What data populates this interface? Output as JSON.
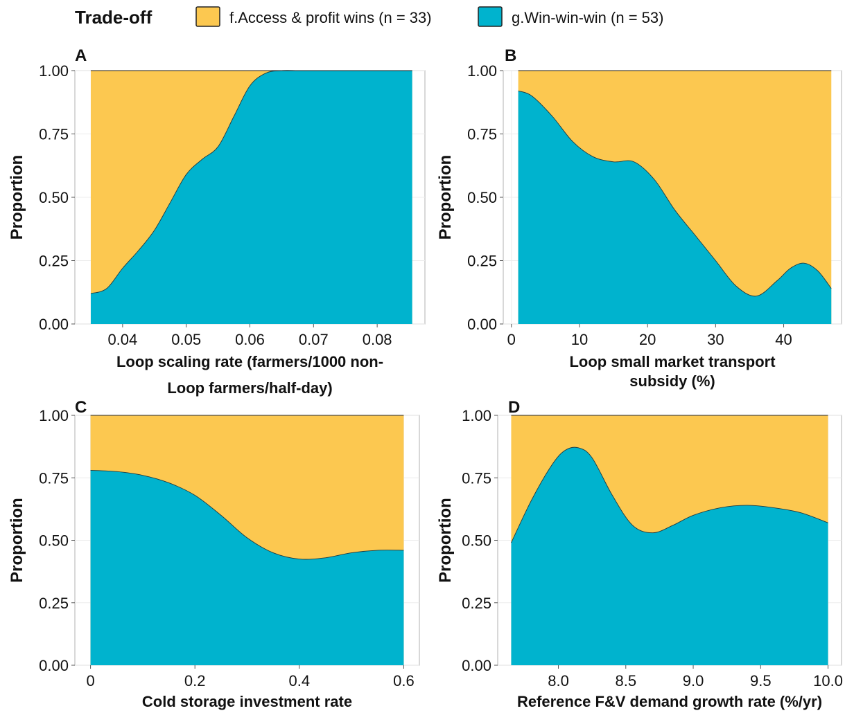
{
  "legend": {
    "title": "Trade-off",
    "items": [
      {
        "label": "f.Access & profit wins (n = 33)",
        "color": "#FCC850"
      },
      {
        "label": "g.Win-win-win (n = 53)",
        "color": "#00B3CE"
      }
    ]
  },
  "chart_data": [
    {
      "panel": "A",
      "type": "area",
      "stacked_proportion": true,
      "xlabel_lines": [
        "Loop scaling rate (farmers/1000 non-",
        "Loop farmers/half-day)"
      ],
      "ylabel": "Proportion",
      "xlim": [
        0.0325,
        0.0875
      ],
      "ylim": [
        0,
        1
      ],
      "x_ticks": [
        0.04,
        0.05,
        0.06,
        0.07,
        0.08
      ],
      "x_tick_labels": [
        "0.04",
        "0.05",
        "0.06",
        "0.07",
        "0.08"
      ],
      "y_ticks": [
        0,
        0.25,
        0.5,
        0.75,
        1
      ],
      "y_tick_labels": [
        "0.00",
        "0.25",
        "0.50",
        "0.75",
        "1.00"
      ],
      "series": [
        {
          "name": "f.Access & profit wins (n = 33)",
          "role": "top"
        },
        {
          "name": "g.Win-win-win (n = 53)",
          "role": "bottom",
          "x": [
            0.035,
            0.0375,
            0.04,
            0.0425,
            0.045,
            0.0475,
            0.05,
            0.0525,
            0.055,
            0.0575,
            0.06,
            0.0625,
            0.065,
            0.0675,
            0.07,
            0.0855
          ],
          "values": [
            0.12,
            0.14,
            0.22,
            0.29,
            0.37,
            0.48,
            0.59,
            0.65,
            0.7,
            0.82,
            0.94,
            0.99,
            1.0,
            1.0,
            1.0,
            1.0
          ]
        }
      ]
    },
    {
      "panel": "B",
      "type": "area",
      "stacked_proportion": true,
      "xlabel_lines": [
        "Loop small market transport",
        "subsidy (%)"
      ],
      "ylabel": "Proportion",
      "xlim": [
        -1.2,
        48.5
      ],
      "ylim": [
        0,
        1
      ],
      "x_ticks": [
        0,
        10,
        20,
        30,
        40
      ],
      "x_tick_labels": [
        "0",
        "10",
        "20",
        "30",
        "40"
      ],
      "y_ticks": [
        0,
        0.25,
        0.5,
        0.75,
        1
      ],
      "y_tick_labels": [
        "0.00",
        "0.25",
        "0.50",
        "0.75",
        "1.00"
      ],
      "series": [
        {
          "name": "f.Access & profit wins (n = 33)",
          "role": "top"
        },
        {
          "name": "g.Win-win-win (n = 53)",
          "role": "bottom",
          "x": [
            1,
            3,
            6,
            9,
            12,
            15,
            18,
            21,
            24,
            27,
            30,
            33,
            36,
            39,
            41,
            43,
            45,
            47
          ],
          "values": [
            0.92,
            0.9,
            0.82,
            0.72,
            0.66,
            0.64,
            0.64,
            0.57,
            0.45,
            0.35,
            0.25,
            0.15,
            0.11,
            0.17,
            0.22,
            0.24,
            0.21,
            0.14
          ]
        }
      ]
    },
    {
      "panel": "C",
      "type": "area",
      "stacked_proportion": true,
      "xlabel_lines": [
        "Cold storage investment rate"
      ],
      "ylabel": "Proportion",
      "xlim": [
        -0.03,
        0.63
      ],
      "ylim": [
        0,
        1
      ],
      "x_ticks": [
        0,
        0.2,
        0.4,
        0.6
      ],
      "x_tick_labels": [
        "0",
        "0.2",
        "0.4",
        "0.6"
      ],
      "y_ticks": [
        0,
        0.25,
        0.5,
        0.75,
        1
      ],
      "y_tick_labels": [
        "0.00",
        "0.25",
        "0.50",
        "0.75",
        "1.00"
      ],
      "series": [
        {
          "name": "f.Access & profit wins (n = 33)",
          "role": "top"
        },
        {
          "name": "g.Win-win-win (n = 53)",
          "role": "bottom",
          "x": [
            0.0,
            0.05,
            0.1,
            0.15,
            0.2,
            0.25,
            0.3,
            0.35,
            0.4,
            0.45,
            0.5,
            0.55,
            0.6
          ],
          "values": [
            0.78,
            0.775,
            0.76,
            0.73,
            0.68,
            0.6,
            0.51,
            0.45,
            0.425,
            0.43,
            0.45,
            0.46,
            0.46
          ]
        }
      ]
    },
    {
      "panel": "D",
      "type": "area",
      "stacked_proportion": true,
      "xlabel_lines": [
        "Reference F&V demand growth rate (%/yr)"
      ],
      "ylabel": "Proportion",
      "xlim": [
        7.55,
        10.1
      ],
      "ylim": [
        0,
        1
      ],
      "x_ticks": [
        8.0,
        8.5,
        9.0,
        9.5,
        10.0
      ],
      "x_tick_labels": [
        "8.0",
        "8.5",
        "9.0",
        "9.5",
        "10.0"
      ],
      "y_ticks": [
        0,
        0.25,
        0.5,
        0.75,
        1
      ],
      "y_tick_labels": [
        "0.00",
        "0.25",
        "0.50",
        "0.75",
        "1.00"
      ],
      "series": [
        {
          "name": "f.Access & profit wins (n = 33)",
          "role": "top"
        },
        {
          "name": "g.Win-win-win (n = 53)",
          "role": "bottom",
          "x": [
            7.65,
            7.8,
            7.95,
            8.05,
            8.15,
            8.25,
            8.4,
            8.55,
            8.7,
            8.85,
            9.0,
            9.2,
            9.4,
            9.6,
            9.8,
            10.0
          ],
          "values": [
            0.49,
            0.66,
            0.8,
            0.86,
            0.87,
            0.83,
            0.68,
            0.56,
            0.53,
            0.56,
            0.6,
            0.63,
            0.64,
            0.63,
            0.61,
            0.57
          ]
        }
      ]
    }
  ]
}
